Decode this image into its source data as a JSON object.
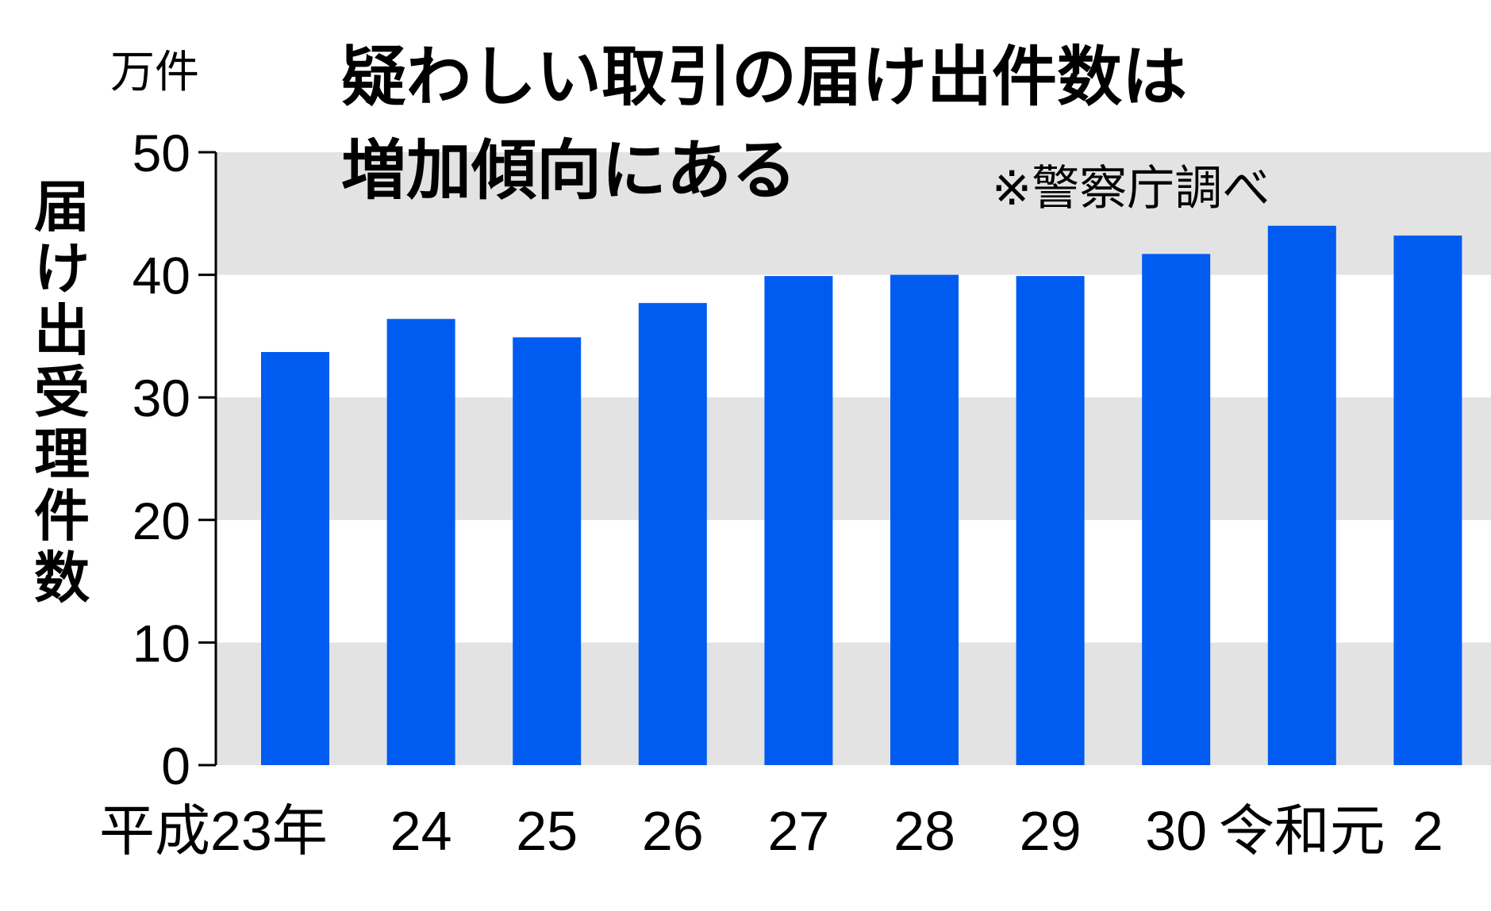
{
  "chart_data": {
    "type": "bar",
    "title_lines": [
      "疑わしい取引の届け出件数は",
      "増加傾向にある"
    ],
    "source_note": "※警察庁調べ",
    "unit": "万件",
    "ylabel": "届け出受理件数",
    "xlabel": "",
    "categories": [
      "平成23年",
      "24",
      "25",
      "26",
      "27",
      "28",
      "29",
      "30",
      "令和元",
      "2"
    ],
    "values": [
      33.7,
      36.4,
      34.9,
      37.7,
      39.9,
      40.0,
      39.9,
      41.7,
      44.0,
      43.2
    ],
    "ylim": [
      0,
      50
    ],
    "yticks": [
      0,
      10,
      20,
      30,
      40,
      50
    ],
    "grid": "alternating horizontal bands",
    "colors": {
      "bar": "#005cf0",
      "band": "#e3e3e3",
      "axis": "#000000",
      "text": "#000000"
    }
  }
}
